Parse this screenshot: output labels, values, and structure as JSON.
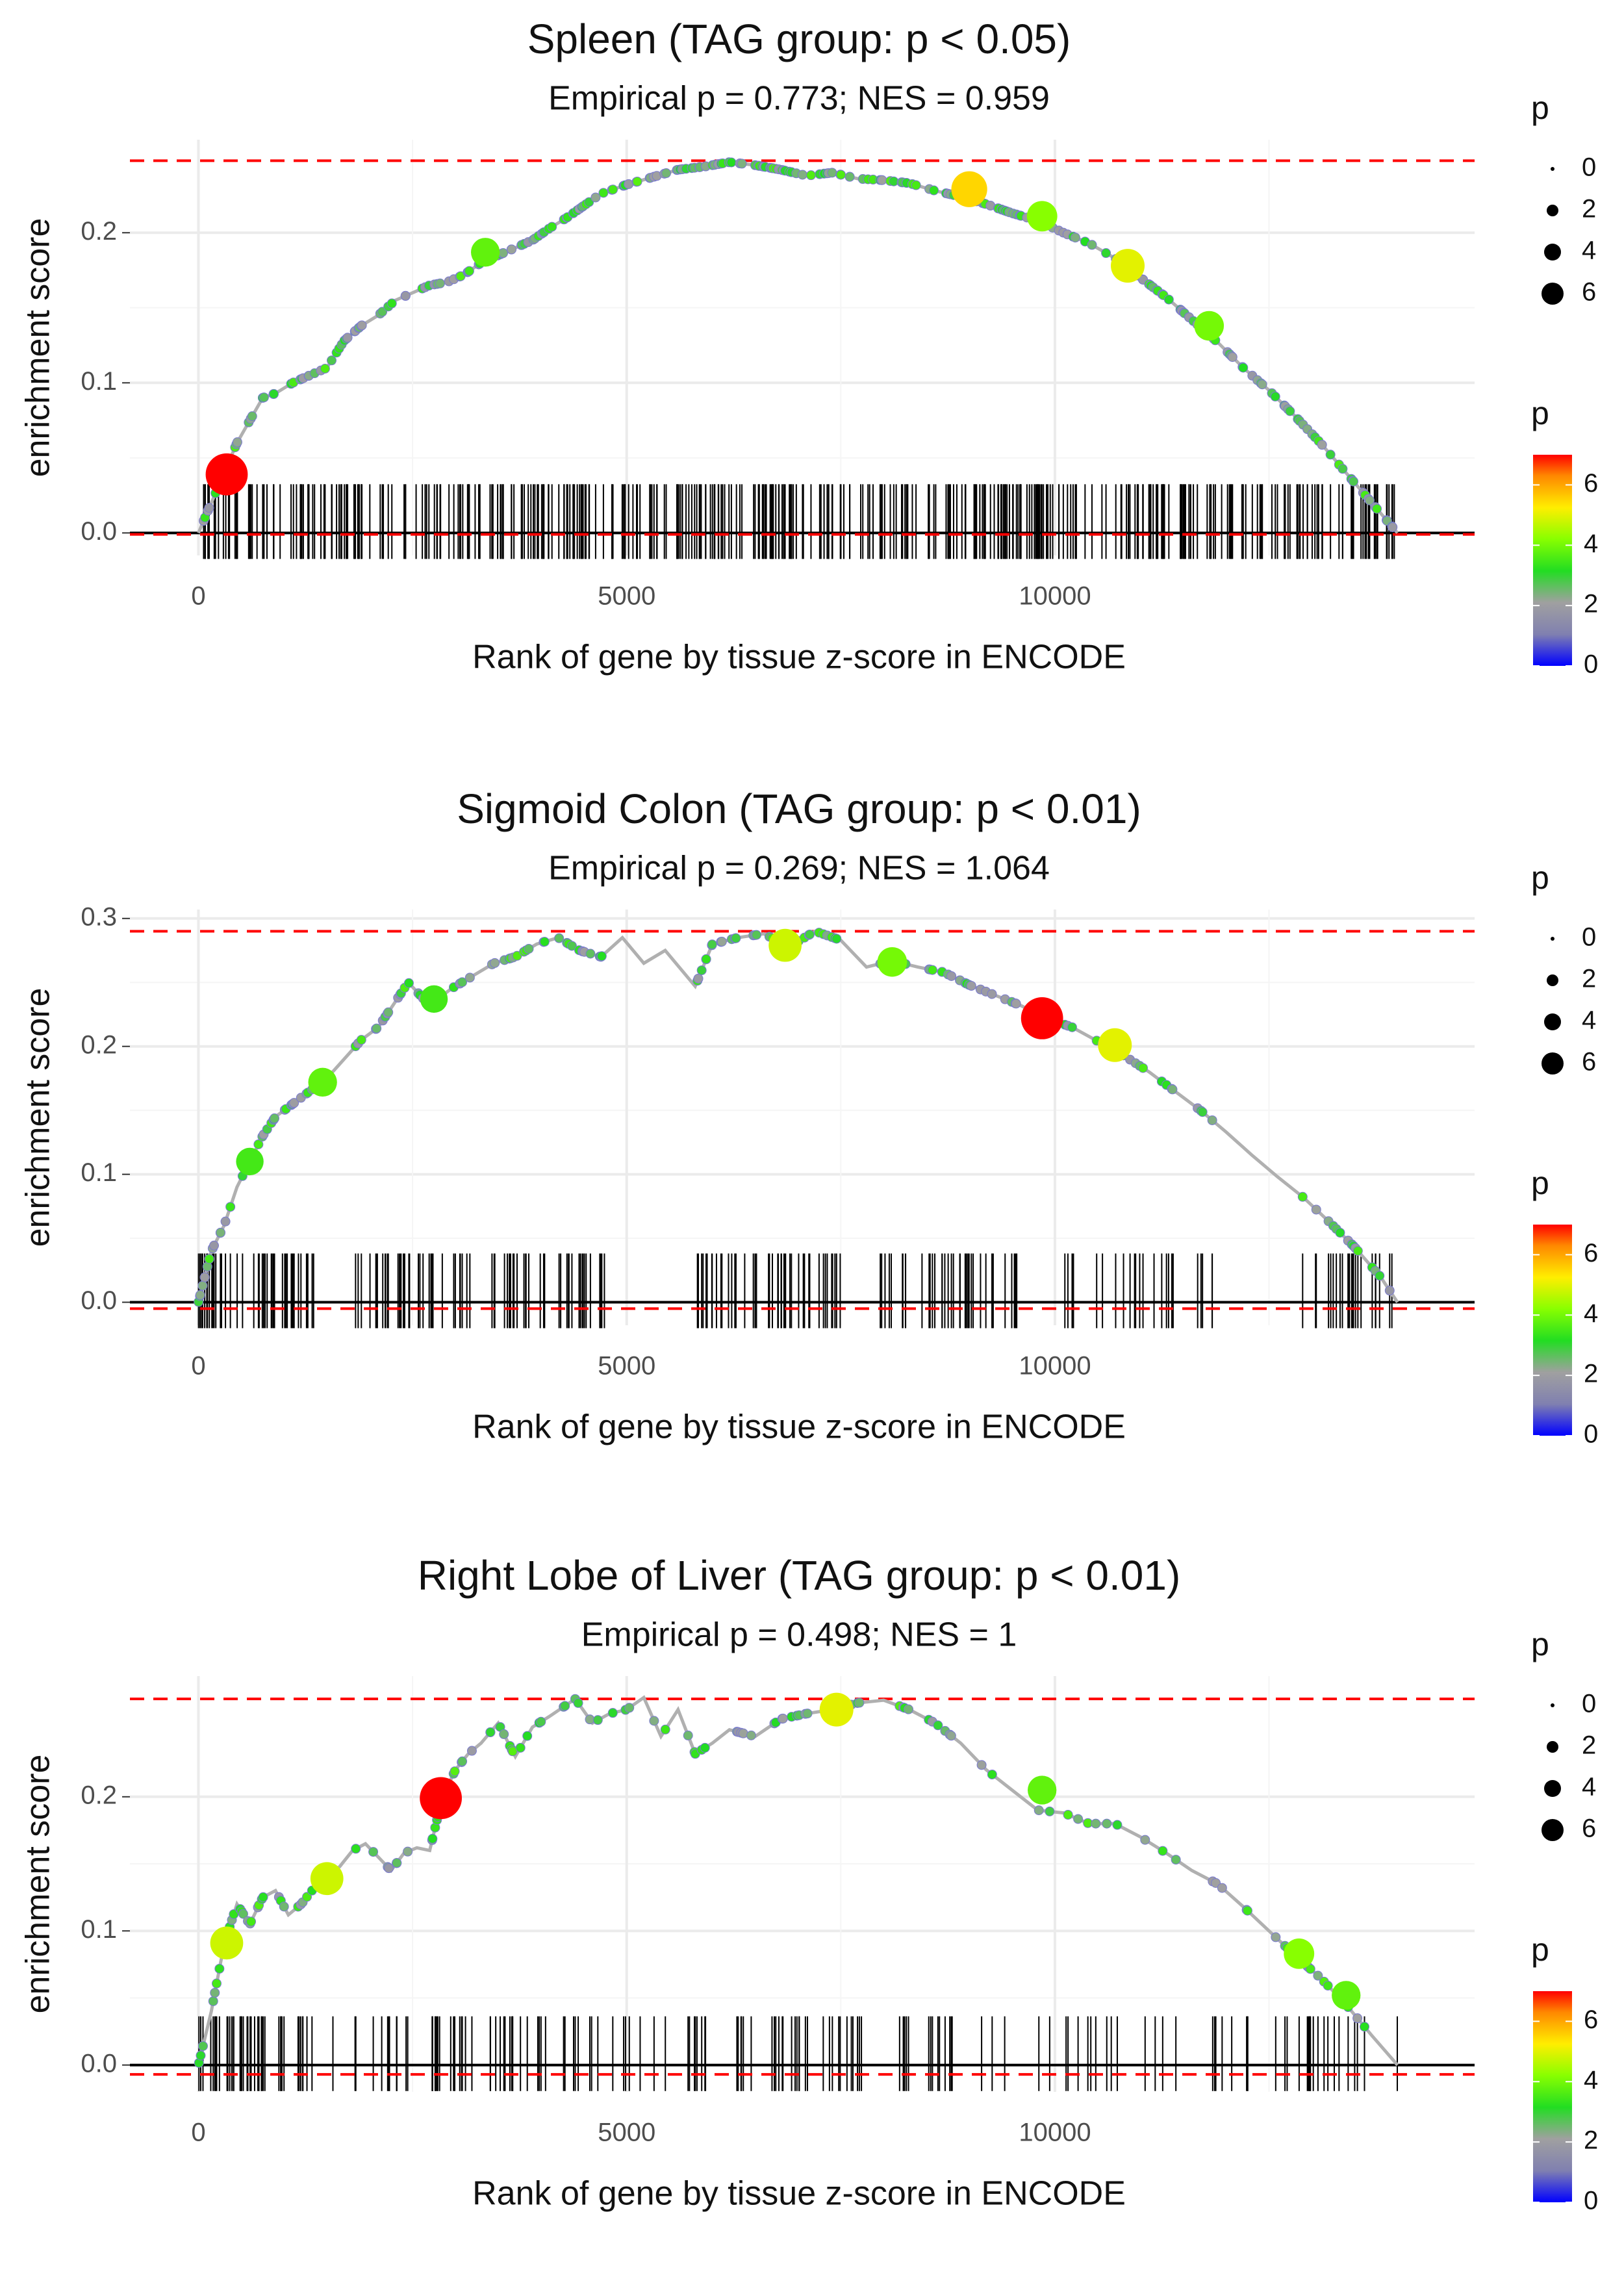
{
  "chart_data": [
    {
      "type": "line",
      "title": "Spleen (TAG group: p < 0.05)",
      "subtitle": "Empirical p = 0.773; NES = 0.959",
      "xlabel": "Rank of gene by tissue z-score in ENCODE",
      "ylabel": "enrichment score",
      "xlim": [
        -800,
        14900
      ],
      "ylim": [
        -0.015,
        0.262
      ],
      "x_ticks": [
        0,
        5000,
        10000
      ],
      "x_tick_labels": [
        "0",
        "5000",
        "10000"
      ],
      "y_ticks": [
        0.0,
        0.1,
        0.2
      ],
      "y_tick_labels": [
        "0.0",
        "0.1",
        "0.2"
      ],
      "max_line": 0.248,
      "min_line": -0.001,
      "series": [
        {
          "name": "running enrichment score",
          "x": [
            0,
            150,
            300,
            450,
            600,
            750,
            900,
            1100,
            1300,
            1500,
            1700,
            1900,
            2100,
            2300,
            2500,
            2700,
            2900,
            3100,
            3300,
            3500,
            3700,
            3900,
            4100,
            4300,
            4500,
            4700,
            5000,
            5300,
            5600,
            5900,
            6200,
            6500,
            6800,
            7100,
            7400,
            7700,
            8000,
            8300,
            8600,
            8900,
            9200,
            9500,
            9800,
            10100,
            10400,
            10700,
            11000,
            11300,
            11600,
            11900,
            12200,
            12500,
            12800,
            13100,
            13400,
            13700,
            14000
          ],
          "values": [
            0.0,
            0.02,
            0.04,
            0.06,
            0.075,
            0.09,
            0.093,
            0.1,
            0.105,
            0.11,
            0.128,
            0.138,
            0.145,
            0.155,
            0.16,
            0.165,
            0.167,
            0.172,
            0.18,
            0.185,
            0.19,
            0.195,
            0.203,
            0.21,
            0.218,
            0.226,
            0.232,
            0.237,
            0.242,
            0.244,
            0.247,
            0.245,
            0.242,
            0.238,
            0.24,
            0.236,
            0.235,
            0.233,
            0.228,
            0.224,
            0.219,
            0.213,
            0.208,
            0.2,
            0.193,
            0.183,
            0.17,
            0.157,
            0.142,
            0.127,
            0.11,
            0.095,
            0.078,
            0.06,
            0.04,
            0.02,
            0.0
          ]
        }
      ],
      "highlight_points": [
        {
          "x": 330,
          "y": 0.039,
          "p": 7.0
        },
        {
          "x": 3350,
          "y": 0.187,
          "p": 3.8
        },
        {
          "x": 9000,
          "y": 0.229,
          "p": 5.5
        },
        {
          "x": 9850,
          "y": 0.211,
          "p": 4.2
        },
        {
          "x": 10850,
          "y": 0.178,
          "p": 5.0
        },
        {
          "x": 11800,
          "y": 0.138,
          "p": 4.0
        }
      ],
      "hit_count": 450,
      "hit_range": [
        0,
        14000
      ],
      "hit_clusters": [],
      "legend_size_title": "p",
      "legend_size_labels": [
        "0",
        "2",
        "4",
        "6"
      ],
      "legend_color_title": "p",
      "legend_color_labels": [
        "0",
        "2",
        "4",
        "6"
      ],
      "color_max": 7.0
    },
    {
      "type": "line",
      "title": "Sigmoid Colon (TAG group: p < 0.01)",
      "subtitle": "Empirical p = 0.269; NES = 1.064",
      "xlabel": "Rank of gene by tissue z-score in ENCODE",
      "ylabel": "enrichment score",
      "xlim": [
        -800,
        14900
      ],
      "ylim": [
        -0.018,
        0.307
      ],
      "x_ticks": [
        0,
        5000,
        10000
      ],
      "x_tick_labels": [
        "0",
        "5000",
        "10000"
      ],
      "y_ticks": [
        0.0,
        0.1,
        0.2,
        0.3
      ],
      "y_tick_labels": [
        "0.0",
        "0.1",
        "0.2",
        "0.3"
      ],
      "max_line": 0.29,
      "min_line": -0.005,
      "series": [
        {
          "name": "running enrichment score",
          "x": [
            0,
            150,
            300,
            450,
            600,
            750,
            900,
            1100,
            1300,
            1500,
            1700,
            1900,
            2100,
            2300,
            2450,
            2700,
            2950,
            3200,
            3450,
            3700,
            3950,
            4200,
            4450,
            4700,
            4950,
            5200,
            5450,
            5800,
            6000,
            6300,
            6600,
            6900,
            7200,
            7500,
            7800,
            8100,
            8400,
            8700,
            9000,
            9300,
            9600,
            9900,
            10200,
            10500,
            10800,
            11100,
            11400,
            11700,
            12000,
            12300,
            12600,
            12900,
            13200,
            13500,
            13800,
            14000
          ],
          "values": [
            0.0,
            0.04,
            0.06,
            0.09,
            0.11,
            0.13,
            0.145,
            0.155,
            0.165,
            0.175,
            0.19,
            0.205,
            0.215,
            0.235,
            0.25,
            0.232,
            0.245,
            0.255,
            0.265,
            0.27,
            0.28,
            0.285,
            0.275,
            0.27,
            0.285,
            0.265,
            0.275,
            0.247,
            0.28,
            0.285,
            0.288,
            0.278,
            0.29,
            0.283,
            0.262,
            0.267,
            0.262,
            0.258,
            0.248,
            0.24,
            0.232,
            0.222,
            0.215,
            0.204,
            0.193,
            0.18,
            0.165,
            0.15,
            0.133,
            0.115,
            0.098,
            0.082,
            0.063,
            0.043,
            0.02,
            0.0
          ]
        }
      ],
      "highlight_points": [
        {
          "x": 600,
          "y": 0.11,
          "p": 3.5
        },
        {
          "x": 1450,
          "y": 0.172,
          "p": 3.8
        },
        {
          "x": 2750,
          "y": 0.237,
          "p": 3.5
        },
        {
          "x": 6850,
          "y": 0.279,
          "p": 4.8
        },
        {
          "x": 8100,
          "y": 0.266,
          "p": 4.0
        },
        {
          "x": 9850,
          "y": 0.222,
          "p": 7.0
        },
        {
          "x": 10700,
          "y": 0.201,
          "p": 5.0
        }
      ],
      "hit_count": 260,
      "hit_range": [
        0,
        14000
      ],
      "hit_clusters": [
        [
          0,
          1500,
          50
        ],
        [
          1800,
          3200,
          35
        ],
        [
          3400,
          4800,
          35
        ],
        [
          5800,
          7500,
          50
        ],
        [
          7900,
          9600,
          40
        ],
        [
          10100,
          12000,
          25
        ],
        [
          12800,
          14000,
          25
        ]
      ],
      "legend_size_title": "p",
      "legend_size_labels": [
        "0",
        "2",
        "4",
        "6"
      ],
      "legend_color_title": "p",
      "legend_color_labels": [
        "0",
        "2",
        "4",
        "6"
      ],
      "color_max": 7.0
    },
    {
      "type": "line",
      "title": "Right Lobe of Liver (TAG group: p < 0.01)",
      "subtitle": "Empirical p = 0.498; NES = 1",
      "xlabel": "Rank of gene by tissue z-score in ENCODE",
      "ylabel": "enrichment score",
      "xlim": [
        -800,
        14900
      ],
      "ylim": [
        -0.02,
        0.29
      ],
      "x_ticks": [
        0,
        5000,
        10000
      ],
      "x_tick_labels": [
        "0",
        "5000",
        "10000"
      ],
      "y_ticks": [
        0.0,
        0.1,
        0.2
      ],
      "y_tick_labels": [
        "0.0",
        "0.1",
        "0.2"
      ],
      "max_line": 0.273,
      "min_line": -0.007,
      "series": [
        {
          "name": "running enrichment score",
          "x": [
            0,
            150,
            300,
            450,
            600,
            750,
            900,
            1050,
            1200,
            1350,
            1500,
            1650,
            1800,
            1950,
            2100,
            2250,
            2400,
            2550,
            2700,
            2850,
            3000,
            3150,
            3300,
            3500,
            3700,
            3900,
            4100,
            4400,
            4600,
            4800,
            5000,
            5200,
            5400,
            5600,
            5800,
            6000,
            6200,
            6500,
            6800,
            7100,
            7400,
            7700,
            8000,
            8300,
            8600,
            8900,
            9200,
            9500,
            9800,
            10100,
            10400,
            10700,
            11000,
            11300,
            11600,
            11900,
            12200,
            12500,
            12800,
            13100,
            13400,
            13700,
            14000
          ],
          "values": [
            0.0,
            0.04,
            0.09,
            0.12,
            0.105,
            0.125,
            0.13,
            0.112,
            0.12,
            0.132,
            0.14,
            0.148,
            0.16,
            0.165,
            0.155,
            0.145,
            0.158,
            0.162,
            0.16,
            0.2,
            0.22,
            0.232,
            0.24,
            0.255,
            0.23,
            0.252,
            0.26,
            0.273,
            0.255,
            0.262,
            0.265,
            0.274,
            0.245,
            0.265,
            0.232,
            0.24,
            0.25,
            0.245,
            0.258,
            0.262,
            0.265,
            0.27,
            0.272,
            0.265,
            0.255,
            0.24,
            0.22,
            0.205,
            0.19,
            0.188,
            0.18,
            0.18,
            0.17,
            0.158,
            0.145,
            0.135,
            0.118,
            0.1,
            0.082,
            0.065,
            0.045,
            0.022,
            0.0
          ]
        }
      ],
      "highlight_points": [
        {
          "x": 330,
          "y": 0.091,
          "p": 4.8
        },
        {
          "x": 1500,
          "y": 0.139,
          "p": 4.8
        },
        {
          "x": 2830,
          "y": 0.199,
          "p": 7.0
        },
        {
          "x": 7450,
          "y": 0.265,
          "p": 5.0
        },
        {
          "x": 9850,
          "y": 0.205,
          "p": 3.8
        },
        {
          "x": 12850,
          "y": 0.083,
          "p": 4.2
        },
        {
          "x": 13400,
          "y": 0.052,
          "p": 3.8
        }
      ],
      "hit_count": 200,
      "hit_range": [
        0,
        14000
      ],
      "hit_clusters": [
        [
          0,
          800,
          30
        ],
        [
          900,
          2600,
          25
        ],
        [
          2700,
          4700,
          40
        ],
        [
          4800,
          6000,
          15
        ],
        [
          6100,
          8300,
          35
        ],
        [
          8400,
          10500,
          20
        ],
        [
          10600,
          14000,
          35
        ]
      ],
      "legend_size_title": "p",
      "legend_size_labels": [
        "0",
        "2",
        "4",
        "6"
      ],
      "legend_color_title": "p",
      "legend_color_labels": [
        "0",
        "2",
        "4",
        "6"
      ],
      "color_max": 7.0
    }
  ]
}
